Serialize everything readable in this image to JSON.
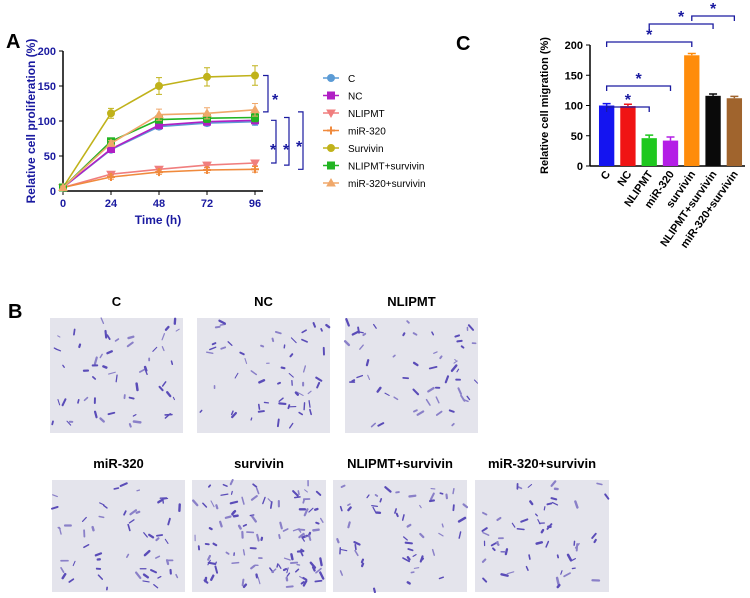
{
  "panel_labels": [
    "A",
    "B",
    "C"
  ],
  "chart_data": [
    {
      "type": "line",
      "x_label": "Time (h)",
      "y_label": "Relative cell proliferation (%)",
      "x": [
        0,
        24,
        48,
        72,
        96
      ],
      "xlim": [
        0,
        100
      ],
      "xticks": [
        0,
        24,
        48,
        72,
        96
      ],
      "ylim": [
        0,
        200
      ],
      "yticks": [
        0,
        50,
        100,
        150,
        200
      ],
      "series": [
        {
          "name": "C",
          "color": "#5b9bd5",
          "marker": "circle",
          "values": [
            5,
            59,
            92,
            97,
            99
          ],
          "errors": [
            2,
            3,
            4,
            4,
            5
          ]
        },
        {
          "name": "NC",
          "color": "#b01fc4",
          "marker": "square",
          "values": [
            5,
            60,
            94,
            99,
            101
          ],
          "errors": [
            2,
            3,
            4,
            4,
            5
          ]
        },
        {
          "name": "NLIPMT",
          "color": "#f07e7e",
          "marker": "down-triangle",
          "values": [
            5,
            24,
            31,
            37,
            40
          ],
          "errors": [
            2,
            3,
            3,
            4,
            4
          ]
        },
        {
          "name": "miR-320",
          "color": "#f08a3c",
          "marker": "plus",
          "values": [
            5,
            20,
            27,
            30,
            31
          ],
          "errors": [
            2,
            3,
            3,
            4,
            4
          ]
        },
        {
          "name": "Survivin",
          "color": "#c0b21a",
          "marker": "circle",
          "values": [
            5,
            111,
            150,
            163,
            165
          ],
          "errors": [
            2,
            7,
            12,
            13,
            14
          ]
        },
        {
          "name": "NLIPMT+survivin",
          "color": "#22b422",
          "marker": "square",
          "values": [
            5,
            71,
            102,
            104,
            105
          ],
          "errors": [
            2,
            3,
            5,
            6,
            6
          ]
        },
        {
          "name": "miR-320+survivin",
          "color": "#f0a86a",
          "marker": "triangle",
          "values": [
            5,
            68,
            109,
            111,
            116
          ],
          "errors": [
            2,
            4,
            8,
            8,
            9
          ]
        }
      ],
      "significance": [
        "*",
        "*",
        "*",
        "*"
      ]
    },
    {
      "type": "bar",
      "y_label": "Relative cell migration (%)",
      "categories": [
        "C",
        "NC",
        "NLIPMT",
        "miR-320",
        "survivin",
        "NLIPMT+survivin",
        "miR-320+survivin"
      ],
      "values": [
        100,
        99,
        46,
        42,
        183,
        116,
        112
      ],
      "errors": [
        3,
        3,
        5,
        6,
        3,
        3,
        3
      ],
      "colors": [
        "#1414f0",
        "#f01414",
        "#1ec81e",
        "#b41ee6",
        "#ff8c0a",
        "#0a0a0a",
        "#a0642d"
      ],
      "ylim": [
        0,
        200
      ],
      "yticks": [
        0,
        50,
        100,
        150,
        200
      ],
      "significance": [
        "*",
        "*",
        "*",
        "*",
        "*"
      ]
    }
  ],
  "micrograph_labels": [
    "C",
    "NC",
    "NLIPMT",
    "miR-320",
    "survivin",
    "NLIPMT+survivin",
    "miR-320+survivin"
  ]
}
